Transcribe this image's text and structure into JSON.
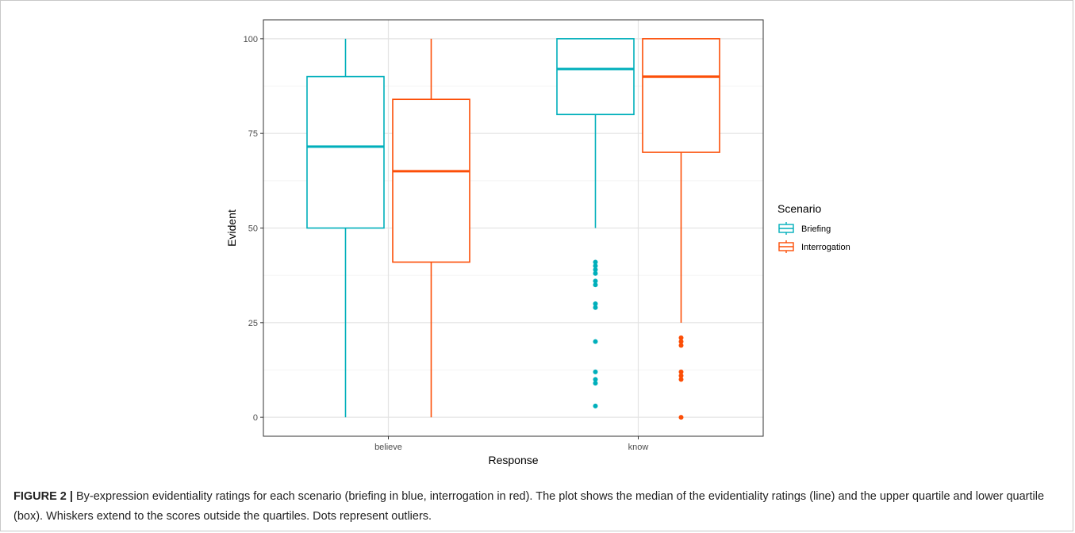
{
  "chart_data": {
    "type": "box",
    "xlabel": "Response",
    "ylabel": "Evident",
    "categories": [
      "believe",
      "know"
    ],
    "ylim": [
      -5,
      105
    ],
    "yticks": [
      0,
      25,
      50,
      75,
      100
    ],
    "grid": true,
    "legend": {
      "title": "Scenario",
      "position": "right"
    },
    "series": [
      {
        "name": "Briefing",
        "color": "#00AFBB",
        "boxes": [
          {
            "category": "believe",
            "min": 0,
            "q1": 50,
            "median": 71.5,
            "q3": 90,
            "max": 100,
            "outliers": []
          },
          {
            "category": "know",
            "min": 50,
            "q1": 80,
            "median": 92,
            "q3": 100,
            "max": 100,
            "outliers": [
              41,
              40,
              39,
              38,
              36,
              35,
              30,
              29,
              20,
              12,
              10,
              9,
              3
            ]
          }
        ]
      },
      {
        "name": "Interrogation",
        "color": "#FC4E07",
        "boxes": [
          {
            "category": "believe",
            "min": 0,
            "q1": 41,
            "median": 65,
            "q3": 84,
            "max": 100,
            "outliers": []
          },
          {
            "category": "know",
            "min": 25,
            "q1": 70,
            "median": 90,
            "q3": 100,
            "max": 100,
            "outliers": [
              21,
              20,
              19,
              12,
              11,
              10,
              0
            ]
          }
        ]
      }
    ]
  },
  "caption": {
    "lead": "FIGURE 2 |",
    "text": " By-expression evidentiality ratings for each scenario (briefing in blue, interrogation in red). The plot shows the median of the evidentiality ratings (line) and the upper quartile and lower quartile (box). Whiskers extend to the scores outside the quartiles. Dots represent outliers."
  }
}
